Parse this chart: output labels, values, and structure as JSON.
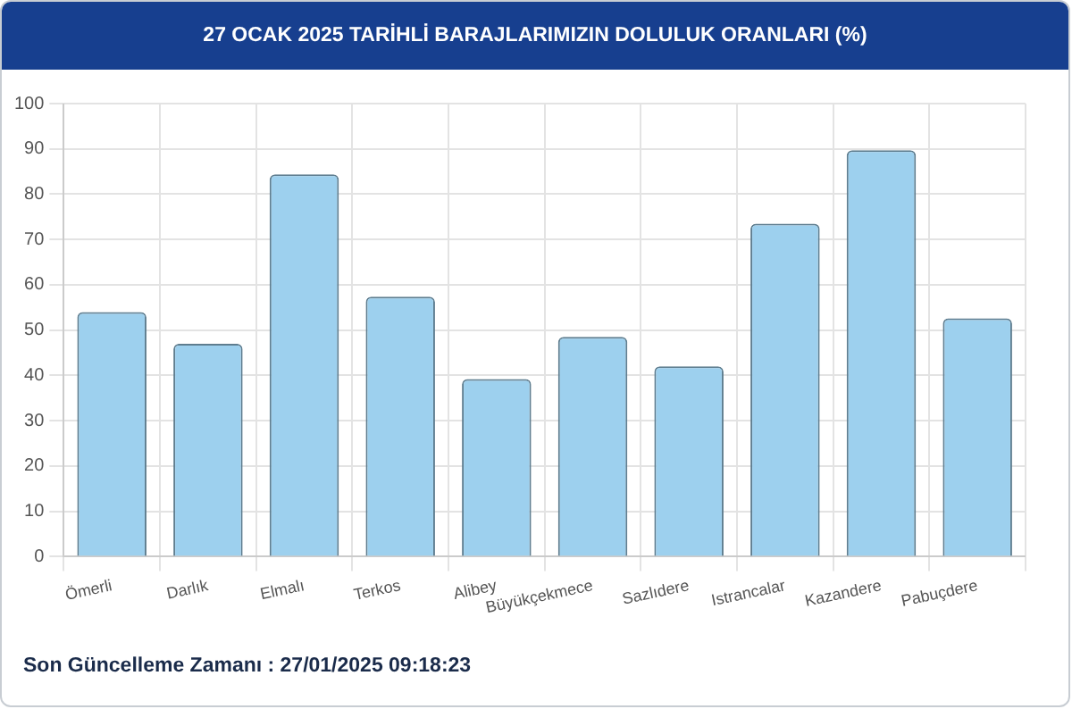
{
  "chart_data": {
    "type": "bar",
    "title": "27 OCAK 2025 TARİHLİ BARAJLARIMIZIN DOLULUK ORANLARI (%)",
    "categories": [
      "Ömerli",
      "Darlık",
      "Elmalı",
      "Terkos",
      "Alibey",
      "Büyükçekmece",
      "Sazlıdere",
      "Istrancalar",
      "Kazandere",
      "Pabuçdere"
    ],
    "values": [
      54.0,
      47.0,
      84.4,
      57.4,
      39.2,
      48.5,
      42.0,
      73.5,
      89.7,
      52.6
    ],
    "color": "#9dd0ee",
    "ylim": [
      0,
      100
    ],
    "yticks": [
      0,
      10,
      20,
      30,
      40,
      50,
      60,
      70,
      80,
      90,
      100
    ],
    "grid": true,
    "annotations": [
      "Son Güncelleme Zamanı : 27/01/2025 09:18:23"
    ]
  }
}
